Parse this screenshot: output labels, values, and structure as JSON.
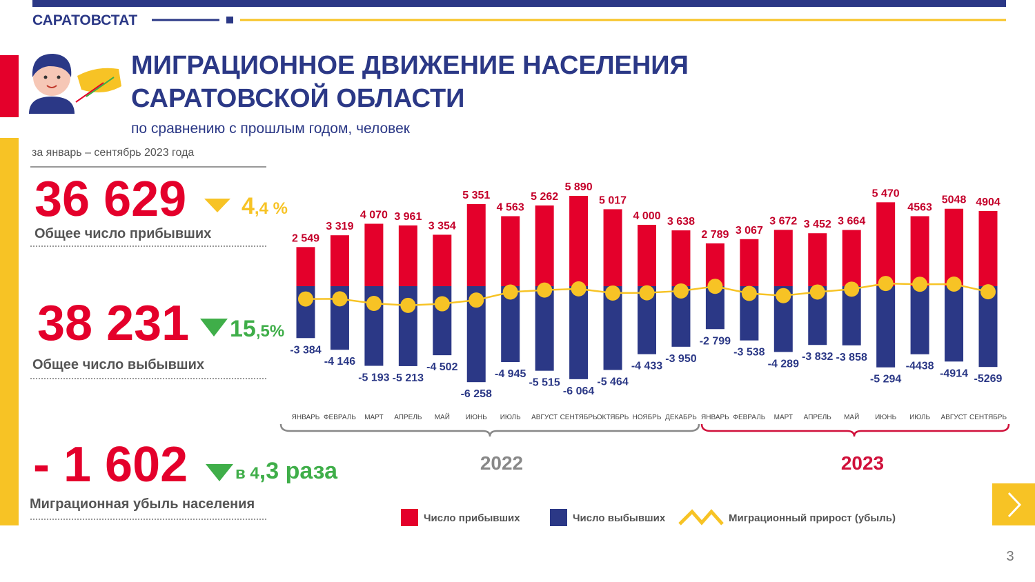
{
  "header": {
    "brand": "САРАТОВСТАТ",
    "title_lines": [
      "МИГРАЦИОННОЕ ДВИЖЕНИЕ НАСЕЛЕНИЯ",
      "САРАТОВСКОЙ ОБЛАСТИ"
    ],
    "subtitle": "по сравнению с прошлым годом, человек",
    "period": "за январь – сентябрь 2023 года"
  },
  "kpis": [
    {
      "value": "36 629",
      "change_main": "4",
      "change_rest": ",4 %",
      "label": "Общее число прибывших"
    },
    {
      "value": "38 231",
      "change_main": "15",
      "change_rest": ",5%",
      "label": "Общее число выбывших"
    },
    {
      "value": "- 1 602",
      "change_main": "в 4",
      "change_rest": ",3 раза",
      "label": "Миграционная убыль населения"
    }
  ],
  "year_labels": [
    "2022",
    "2023"
  ],
  "page_number": "3",
  "chart_data": {
    "type": "bar",
    "categories": [
      "ЯНВАРЬ",
      "ФЕВРАЛЬ",
      "МАРТ",
      "АПРЕЛЬ",
      "МАЙ",
      "ИЮНЬ",
      "ИЮЛЬ",
      "АВГУСТ",
      "СЕНТЯБРЬ",
      "ОКТЯБРЬ",
      "НОЯБРЬ",
      "ДЕКАБРЬ",
      "ЯНВАРЬ",
      "ФЕВРАЛЬ",
      "МАРТ",
      "АПРЕЛЬ",
      "МАЙ",
      "ИЮНЬ",
      "ИЮЛЬ",
      "АВГУСТ",
      "СЕНТЯБРЬ"
    ],
    "ylim": [
      -7000,
      7000
    ],
    "series": [
      {
        "name": "Число прибывших",
        "color": "#e4002b",
        "label_color": "#c4002a",
        "values": [
          2549,
          3319,
          4070,
          3961,
          3354,
          5351,
          4563,
          5262,
          5890,
          5017,
          4000,
          3638,
          2789,
          3067,
          3672,
          3452,
          3664,
          5470,
          4563,
          5048,
          4904
        ],
        "value_labels": [
          "2 549",
          "3 319",
          "4 070",
          "3 961",
          "3 354",
          "5 351",
          "4 563",
          "5 262",
          "5 890",
          "5 017",
          "4 000",
          "3 638",
          "2 789",
          "3 067",
          "3 672",
          "3 452",
          "3 664",
          "5 470",
          "4563",
          "5048",
          "4904"
        ]
      },
      {
        "name": "Число выбывших",
        "color": "#2b3886",
        "label_color": "#2b3886",
        "values": [
          -3384,
          -4146,
          -5193,
          -5213,
          -4502,
          -6258,
          -4945,
          -5515,
          -6064,
          -5464,
          -4433,
          -3950,
          -2799,
          -3538,
          -4289,
          -3832,
          -3858,
          -5294,
          -4438,
          -4914,
          -5269
        ],
        "value_labels": [
          "-3 384",
          "-4 146",
          "-5 193",
          "-5 213",
          "-4 502",
          "-6 258",
          "-4 945",
          "-5 515",
          "-6 064",
          "-5 464",
          "-4 433",
          "-3 950",
          "-2 799",
          "-3 538",
          "-4 289",
          "-3 832",
          "-3 858",
          "-5 294",
          "-4438",
          "-4914",
          "-5269"
        ]
      },
      {
        "name": "Миграционный прирост (убыль)",
        "color": "#f7c325",
        "type": "line",
        "values": [
          -835,
          -827,
          -1123,
          -1252,
          -1148,
          -907,
          -382,
          -253,
          -174,
          -447,
          -433,
          -312,
          -10,
          -471,
          -617,
          -380,
          -194,
          176,
          125,
          134,
          -365
        ]
      }
    ]
  }
}
